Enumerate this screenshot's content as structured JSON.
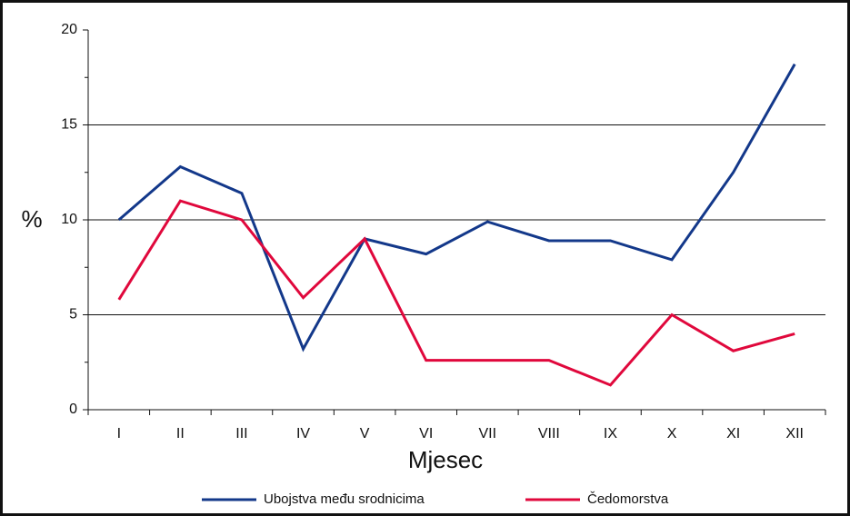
{
  "chart_data": {
    "type": "line",
    "y_label": "%",
    "x_label": "Mjesec",
    "categories": [
      "I",
      "II",
      "III",
      "IV",
      "V",
      "VI",
      "VII",
      "VIII",
      "IX",
      "X",
      "XI",
      "XII"
    ],
    "series": [
      {
        "name": "Ubojstva među srodnicima",
        "color": "#13388a",
        "values": [
          10.0,
          12.8,
          11.4,
          3.2,
          9.0,
          8.2,
          9.9,
          8.9,
          8.9,
          7.9,
          12.5,
          18.2
        ]
      },
      {
        "name": "Čedomorstva",
        "color": "#e0083c",
        "values": [
          5.8,
          11.0,
          10.0,
          5.9,
          9.0,
          2.6,
          2.6,
          2.6,
          1.3,
          5.0,
          3.1,
          4.0
        ]
      }
    ],
    "ylim": [
      0,
      20
    ],
    "yticks": [
      0,
      5,
      10,
      15,
      20
    ],
    "minor_yticks": [
      2.5,
      7.5,
      12.5,
      17.5
    ],
    "grid": true,
    "legend": "bottom"
  }
}
